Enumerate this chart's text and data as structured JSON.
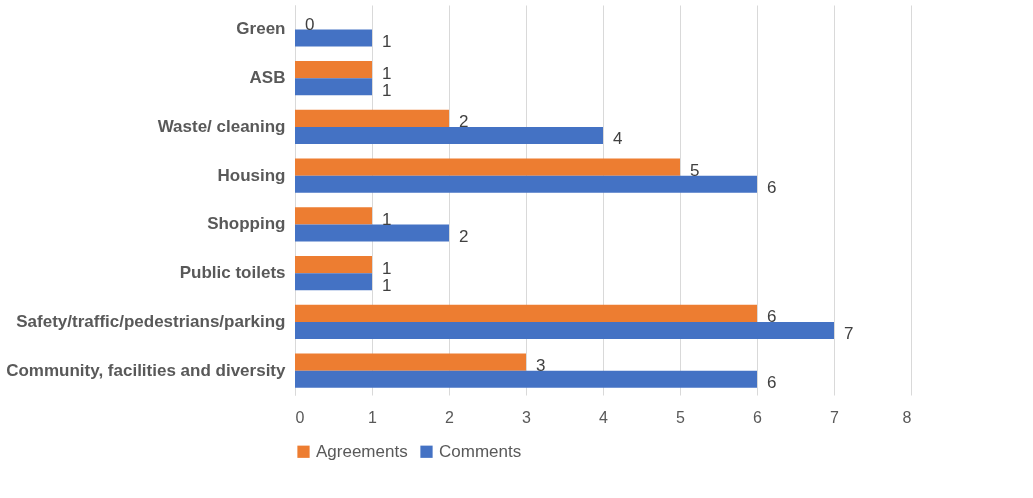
{
  "chart_data": {
    "type": "bar",
    "orientation": "horizontal",
    "categories": [
      "Green",
      "ASB",
      "Waste/ cleaning",
      "Housing",
      "Shopping",
      "Public toilets",
      "Safety/traffic/pedestrians/parking",
      "Community, facilities and diversity"
    ],
    "series": [
      {
        "name": "Agreements",
        "color": "#ed7d31",
        "values": [
          0,
          1,
          2,
          5,
          1,
          1,
          6,
          3
        ]
      },
      {
        "name": "Comments",
        "color": "#4472c4",
        "values": [
          1,
          1,
          4,
          6,
          2,
          1,
          7,
          6
        ]
      }
    ],
    "xlim": [
      0,
      8
    ],
    "xticks": [
      0,
      1,
      2,
      3,
      4,
      5,
      6,
      7,
      8
    ],
    "grid": "x",
    "legend": "bottom",
    "data_labels": true
  }
}
